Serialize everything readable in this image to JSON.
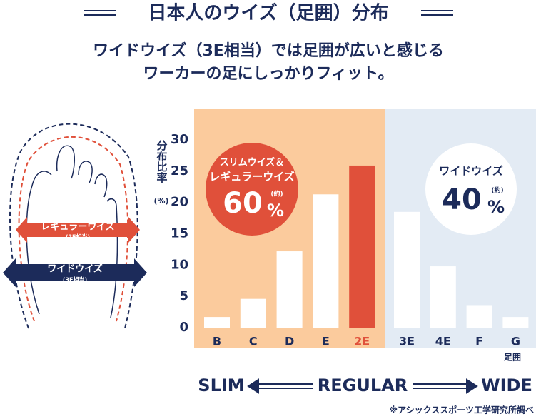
{
  "chart_data": {
    "type": "bar",
    "title": "日本人のウイズ（足囲）分布",
    "subtitle": [
      "ワイドウイズ（3E相当）では足囲が広いと感じる",
      "ワーカーの足にしっかりフィット。"
    ],
    "y_label": "分布比率",
    "y_unit": "(%)",
    "x_label": "足囲",
    "categories": [
      "B",
      "C",
      "D",
      "E",
      "2E",
      "3E",
      "4E",
      "F",
      "G"
    ],
    "values": [
      1.7,
      4.6,
      12.2,
      21.3,
      25.9,
      18.5,
      9.8,
      3.6,
      1.7
    ],
    "colors": [
      "#ffffff",
      "#ffffff",
      "#ffffff",
      "#ffffff",
      "#e0503a",
      "#ffffff",
      "#ffffff",
      "#ffffff",
      "#ffffff"
    ],
    "ylim": [
      0,
      30
    ],
    "yticks": [
      0,
      5,
      10,
      15,
      20,
      25,
      30
    ],
    "grid": false,
    "annotations": {
      "slim_regular": {
        "line1": "スリムウイズ＆",
        "line2": "レギュラーウイズ",
        "percent": "60",
        "unit": "%",
        "approx": "(約)"
      },
      "wide": {
        "line1": "ワイドウイズ",
        "percent": "40",
        "unit": "%",
        "approx": "(約)"
      }
    },
    "diagram": {
      "regular": "レギュラーウイズ",
      "regular_note": "(2E相当)",
      "wide": "ワイドウイズ",
      "wide_note": "(3E相当)"
    },
    "scale": {
      "slim": "SLIM",
      "regular": "REGULAR",
      "wide": "WIDE"
    },
    "source": "※アシックススポーツ工学研究所調べ"
  }
}
